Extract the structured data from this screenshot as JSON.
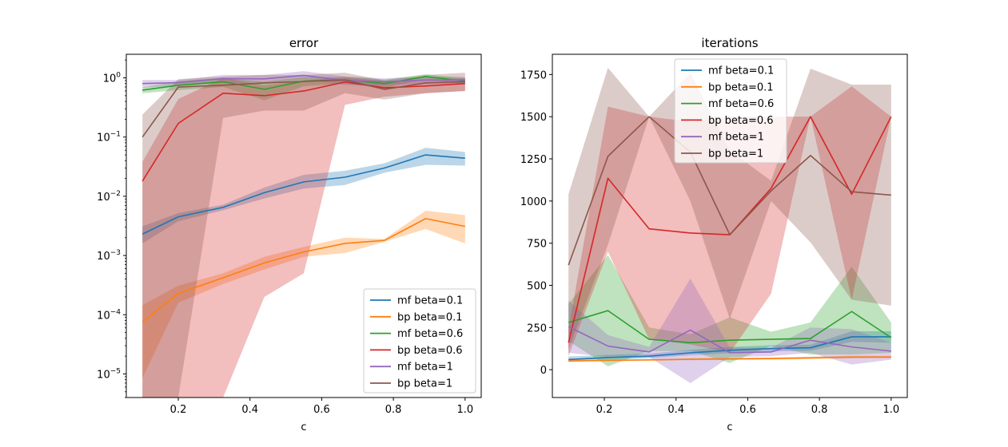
{
  "figure": {
    "background": "#ffffff"
  },
  "chart_data": [
    {
      "type": "line",
      "title": "error",
      "xlabel": "c",
      "ylabel": "",
      "yscale": "log",
      "xlim": [
        0.055,
        1.045
      ],
      "ylim": [
        4e-06,
        2.5
      ],
      "xticks": [
        0.2,
        0.4,
        0.6,
        0.8,
        1.0
      ],
      "xticklabels": [
        "0.2",
        "0.4",
        "0.6",
        "0.8",
        "1.0"
      ],
      "yticks": [
        1e-05,
        0.0001,
        0.001,
        0.01,
        0.1,
        1
      ],
      "yticklabels": [
        [
          "10",
          "−5"
        ],
        [
          "10",
          "−4"
        ],
        [
          "10",
          "−3"
        ],
        [
          "10",
          "−2"
        ],
        [
          "10",
          "−1"
        ],
        [
          "10",
          "0"
        ]
      ],
      "legend_loc": "lower-right",
      "grid": false,
      "x": [
        0.1,
        0.2,
        0.325,
        0.44,
        0.55,
        0.665,
        0.775,
        0.89,
        1.0
      ],
      "series": [
        {
          "name": "mf beta=0.1",
          "color": "#1f77b4",
          "values": [
            0.0023,
            0.0045,
            0.0065,
            0.0115,
            0.0175,
            0.021,
            0.03,
            0.05,
            0.044
          ],
          "lower": [
            0.0016,
            0.0038,
            0.0058,
            0.0092,
            0.0135,
            0.0155,
            0.025,
            0.034,
            0.033
          ],
          "upper": [
            0.0031,
            0.0052,
            0.0072,
            0.014,
            0.023,
            0.027,
            0.036,
            0.066,
            0.056
          ]
        },
        {
          "name": "bp beta=0.1",
          "color": "#ff7f0e",
          "values": [
            7.5e-05,
            0.00023,
            0.00042,
            0.00075,
            0.00115,
            0.0016,
            0.0018,
            0.0042,
            0.0031
          ],
          "lower": [
            8.5e-06,
            0.00016,
            0.00033,
            0.00058,
            0.00095,
            0.0011,
            0.0017,
            0.0028,
            0.0016
          ],
          "upper": [
            0.000145,
            0.00031,
            0.0005,
            0.00095,
            0.0014,
            0.002,
            0.0019,
            0.0057,
            0.0048
          ]
        },
        {
          "name": "mf beta=0.6",
          "color": "#2ca02c",
          "values": [
            0.62,
            0.75,
            0.86,
            0.64,
            0.88,
            0.92,
            0.8,
            1.05,
            0.88
          ],
          "lower": [
            0.55,
            0.62,
            0.7,
            0.42,
            0.72,
            0.8,
            0.68,
            0.95,
            0.78
          ],
          "upper": [
            0.69,
            0.88,
            1.0,
            0.86,
            1.03,
            1.04,
            0.94,
            1.15,
            0.98
          ]
        },
        {
          "name": "bp beta=0.6",
          "color": "#d62728",
          "values": [
            0.018,
            0.17,
            0.55,
            0.5,
            0.6,
            0.85,
            0.68,
            0.73,
            0.8
          ],
          "lower": [
            4e-06,
            4e-06,
            4e-06,
            0.0002,
            0.0005,
            0.35,
            0.48,
            0.55,
            0.6
          ],
          "upper": [
            0.038,
            0.44,
            1.0,
            0.75,
            0.9,
            1.02,
            0.88,
            0.9,
            0.98
          ]
        },
        {
          "name": "mf beta=1",
          "color": "#9467bd",
          "values": [
            0.8,
            0.83,
            0.97,
            0.96,
            1.1,
            0.9,
            0.86,
            0.92,
            0.92
          ],
          "lower": [
            0.68,
            0.74,
            0.82,
            0.82,
            0.92,
            0.76,
            0.74,
            0.8,
            0.8
          ],
          "upper": [
            0.92,
            0.92,
            1.12,
            1.12,
            1.3,
            1.06,
            0.98,
            1.04,
            1.04
          ]
        },
        {
          "name": "bp beta=1",
          "color": "#8c564b",
          "values": [
            0.1,
            0.7,
            0.75,
            0.82,
            0.87,
            0.92,
            0.64,
            0.82,
            0.86
          ],
          "lower": [
            4e-06,
            4e-06,
            0.21,
            0.28,
            0.28,
            0.55,
            0.43,
            0.55,
            0.6
          ],
          "upper": [
            0.24,
            0.95,
            1.05,
            1.12,
            1.12,
            1.22,
            0.9,
            1.12,
            1.22
          ]
        }
      ]
    },
    {
      "type": "line",
      "title": "iterations",
      "xlabel": "c",
      "ylabel": "",
      "yscale": "linear",
      "xlim": [
        0.055,
        1.045
      ],
      "ylim": [
        -165,
        1870
      ],
      "xticks": [
        0.2,
        0.4,
        0.6,
        0.8,
        1.0
      ],
      "xticklabels": [
        "0.2",
        "0.4",
        "0.6",
        "0.8",
        "1.0"
      ],
      "yticks": [
        0,
        250,
        500,
        750,
        1000,
        1250,
        1500,
        1750
      ],
      "yticklabels": [
        "0",
        "250",
        "500",
        "750",
        "1000",
        "1250",
        "1500",
        "1750"
      ],
      "legend_loc": "upper-center",
      "grid": false,
      "x": [
        0.1,
        0.21,
        0.325,
        0.44,
        0.55,
        0.665,
        0.775,
        0.89,
        1.0
      ],
      "series": [
        {
          "name": "mf beta=0.1",
          "color": "#1f77b4",
          "values": [
            60,
            72,
            80,
            100,
            115,
            125,
            130,
            195,
            195
          ],
          "lower": [
            45,
            58,
            68,
            85,
            98,
            108,
            112,
            165,
            160
          ],
          "upper": [
            78,
            88,
            95,
            118,
            135,
            145,
            148,
            228,
            228
          ]
        },
        {
          "name": "bp beta=0.1",
          "color": "#ff7f0e",
          "values": [
            52,
            55,
            58,
            62,
            64,
            66,
            70,
            75,
            75
          ],
          "lower": [
            48,
            50,
            53,
            56,
            58,
            60,
            63,
            67,
            68
          ],
          "upper": [
            56,
            60,
            63,
            68,
            70,
            72,
            77,
            83,
            82
          ]
        },
        {
          "name": "mf beta=0.6",
          "color": "#2ca02c",
          "values": [
            280,
            350,
            180,
            160,
            175,
            180,
            185,
            345,
            190
          ],
          "lower": [
            170,
            20,
            110,
            110,
            40,
            140,
            90,
            90,
            100
          ],
          "upper": [
            390,
            680,
            250,
            210,
            310,
            225,
            280,
            610,
            280
          ]
        },
        {
          "name": "bp beta=0.6",
          "color": "#d62728",
          "values": [
            160,
            1135,
            835,
            810,
            800,
            1075,
            1500,
            1040,
            1500
          ],
          "lower": [
            80,
            700,
            180,
            150,
            100,
            450,
            1500,
            415,
            1500
          ],
          "upper": [
            240,
            1560,
            1500,
            1470,
            1500,
            1500,
            1500,
            1680,
            1500
          ]
        },
        {
          "name": "mf beta=1",
          "color": "#9467bd",
          "values": [
            255,
            140,
            105,
            235,
            100,
            105,
            175,
            135,
            110
          ],
          "lower": [
            100,
            75,
            75,
            -80,
            75,
            80,
            100,
            30,
            60
          ],
          "upper": [
            410,
            205,
            135,
            540,
            130,
            130,
            250,
            240,
            160
          ]
        },
        {
          "name": "bp beta=1",
          "color": "#8c564b",
          "values": [
            620,
            1265,
            1500,
            1290,
            800,
            1060,
            1270,
            1055,
            1035
          ],
          "lower": [
            120,
            740,
            1500,
            1000,
            300,
            1000,
            755,
            415,
            380
          ],
          "upper": [
            1040,
            1790,
            1500,
            1760,
            1300,
            1120,
            1785,
            1690,
            1690
          ]
        }
      ]
    }
  ]
}
